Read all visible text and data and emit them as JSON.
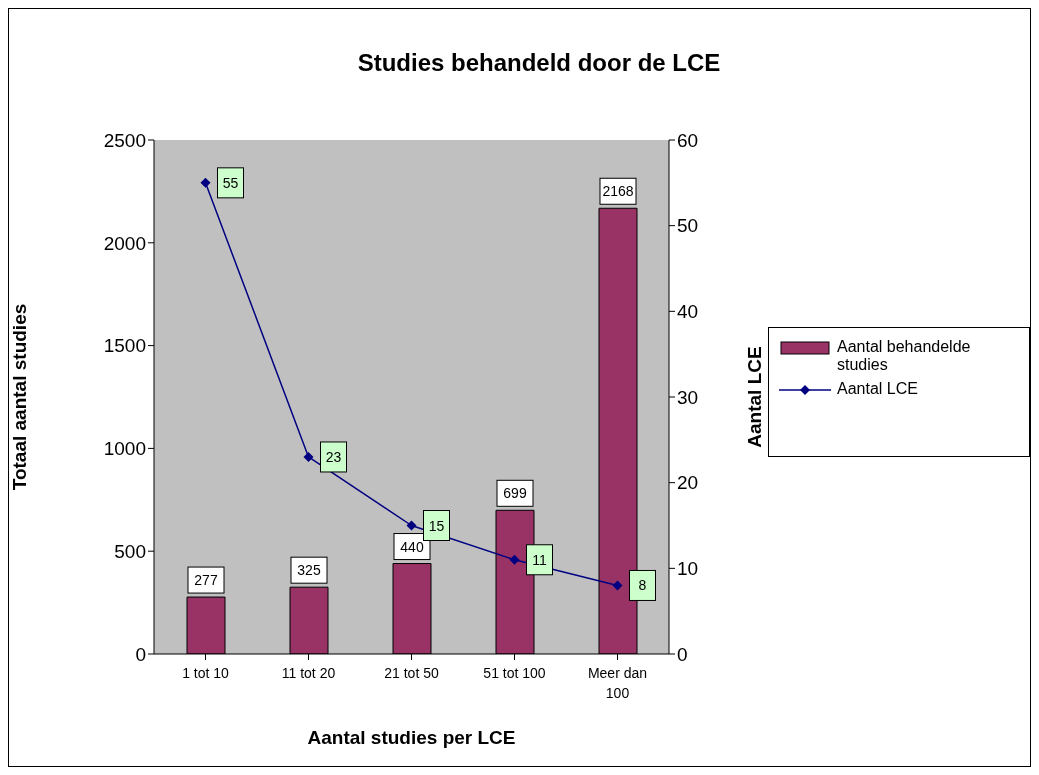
{
  "chart_data": {
    "type": "bar",
    "title": "Studies behandeld door de LCE",
    "xlabel": "Aantal studies per LCE",
    "ylabel": "Totaal aantal studies",
    "y2label": "Aantal LCE",
    "categories": [
      "1 tot 10",
      "11 tot 20",
      "21 tot 50",
      "51 tot 100",
      "Meer dan 100"
    ],
    "series": [
      {
        "name": "Aantal behandelde studies",
        "color": "#993366",
        "values": [
          277,
          325,
          440,
          699,
          2168
        ]
      },
      {
        "name": "Aantal LCE",
        "type": "line",
        "axis": "y2",
        "color": "#000080",
        "values": [
          55,
          23,
          15,
          11,
          8
        ]
      }
    ],
    "ylim": [
      0,
      2500
    ],
    "yticks": [
      0,
      500,
      1000,
      1500,
      2000,
      2500
    ],
    "y2lim": [
      0,
      60
    ],
    "y2ticks": [
      0,
      10,
      20,
      30,
      40,
      50,
      60
    ],
    "data_labels": true,
    "grid": false,
    "legend": "right",
    "marker": "diamond",
    "line_style": "solid"
  }
}
